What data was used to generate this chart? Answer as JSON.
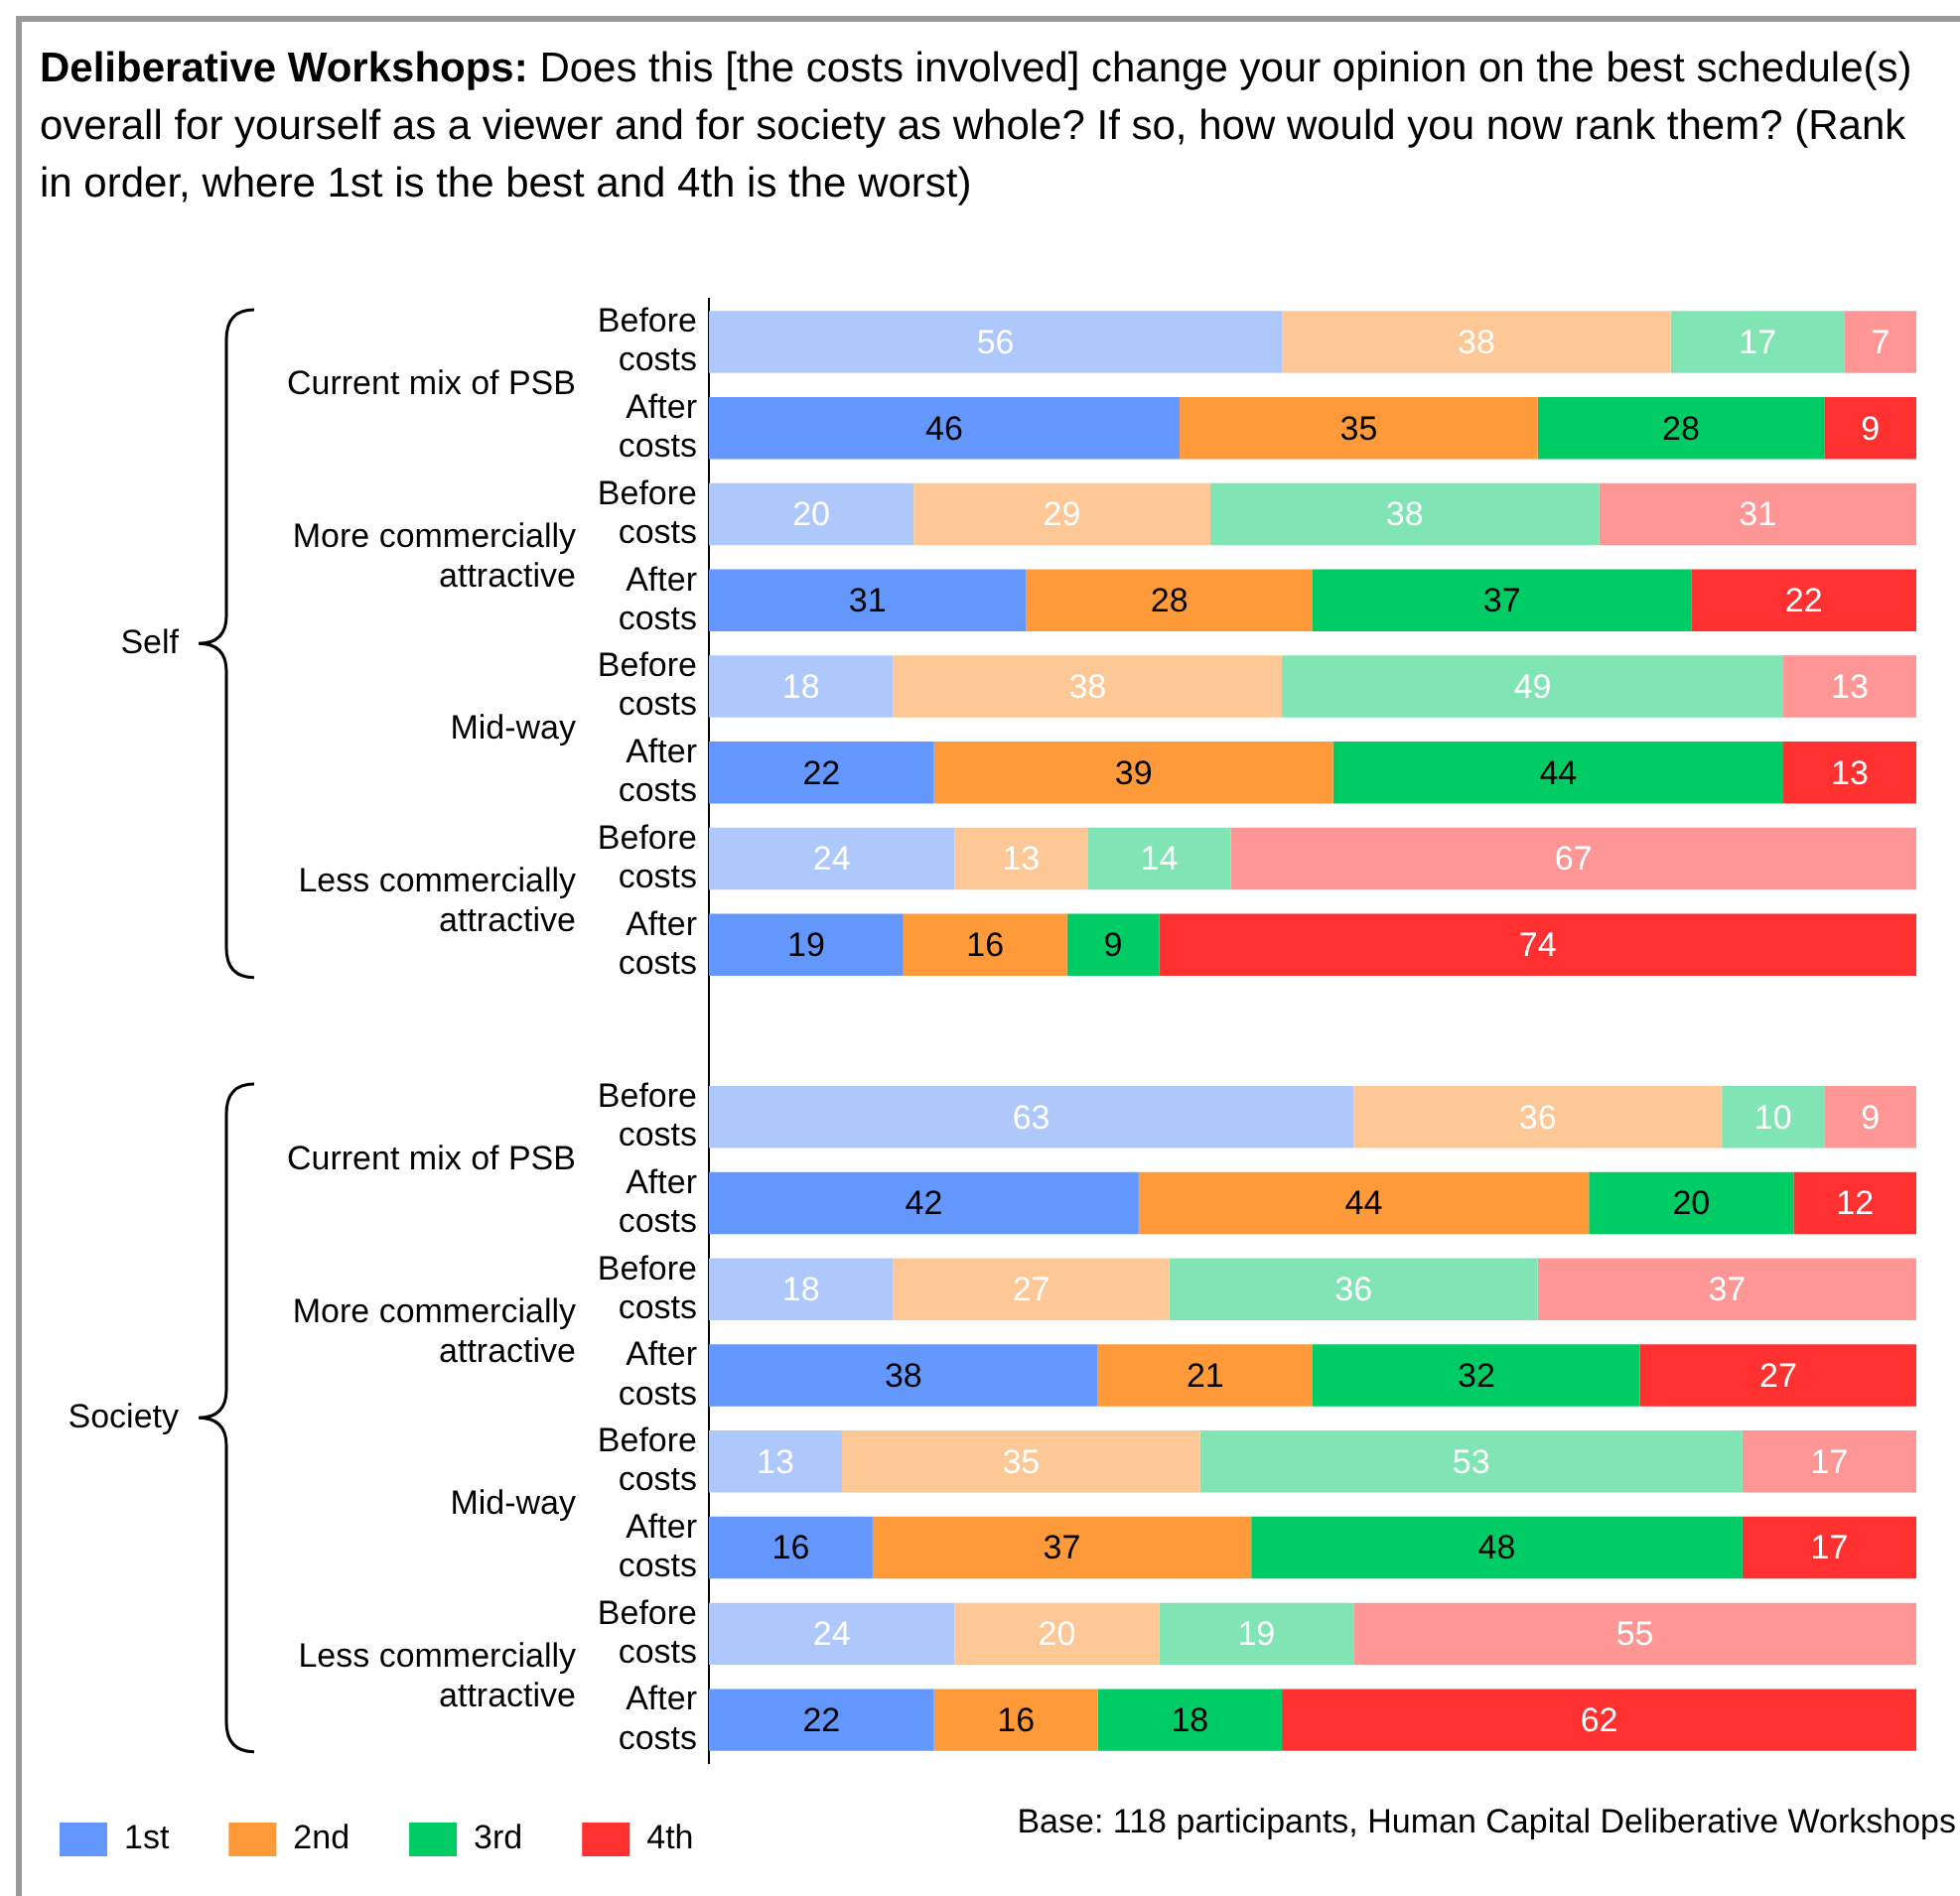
{
  "chart_data": {
    "type": "bar",
    "orientation": "horizontal",
    "stacked": true,
    "title": "Deliberative Workshops:",
    "subtitle": "Does this [the costs involved] change your opinion on the best schedule(s) overall for yourself as a viewer and for society as whole? If so, how would you now rank them? (Rank in order, where 1st is the best and 4th is the worst)",
    "categories": [
      "Before costs",
      "After costs",
      "Before costs",
      "After costs",
      "Before costs",
      "After costs",
      "Before costs",
      "After costs",
      null,
      "Before costs",
      "After costs",
      "Before costs",
      "After costs",
      "Before costs",
      "After costs",
      "Before costs",
      "After costs"
    ],
    "xlim": [
      0,
      118
    ],
    "tick_labels": "y",
    "grid": false,
    "legend": "bottom",
    "data_labels": true,
    "series": [
      {
        "name": "1st",
        "color": "#6497fc",
        "colors": [
          "#afc8fb",
          "#6497fc",
          "#afc8fb",
          "#6497fc",
          "#afc8fb",
          "#6497fc",
          "#afc8fb",
          "#6497fc",
          "#6497fc",
          "#afc8fb",
          "#6497fc",
          "#afc8fb",
          "#6497fc",
          "#afc8fb",
          "#6497fc",
          "#afc8fb",
          "#6497fc"
        ],
        "values": [
          56,
          46,
          20,
          31,
          18,
          22,
          24,
          19,
          null,
          63,
          42,
          18,
          38,
          13,
          16,
          24,
          22
        ]
      },
      {
        "name": "2nd",
        "color": "#fe9a3a",
        "colors": [
          "#fdc896",
          "#fe9a3a",
          "#fdc896",
          "#fe9a3a",
          "#fdc896",
          "#fe9a3a",
          "#fdc896",
          "#fe9a3a",
          "#fe9a3a",
          "#fdc896",
          "#fe9a3a",
          "#fdc896",
          "#fe9a3a",
          "#fdc896",
          "#fe9a3a",
          "#fdc896",
          "#fe9a3a"
        ],
        "values": [
          38,
          35,
          29,
          28,
          38,
          39,
          13,
          16,
          null,
          36,
          44,
          27,
          21,
          35,
          37,
          20,
          16
        ]
      },
      {
        "name": "3rd",
        "color": "#00cc66",
        "colors": [
          "#80e4b4",
          "#00cc66",
          "#80e4b4",
          "#00cc66",
          "#80e4b4",
          "#00cc66",
          "#80e4b4",
          "#00cc66",
          "#00cc66",
          "#80e4b4",
          "#00cc66",
          "#80e4b4",
          "#00cc66",
          "#80e4b4",
          "#00cc66",
          "#80e4b4",
          "#00cc66"
        ],
        "values": [
          17,
          28,
          38,
          37,
          49,
          44,
          14,
          9,
          null,
          10,
          20,
          36,
          32,
          53,
          48,
          19,
          18
        ]
      },
      {
        "name": "4th",
        "color": "#fe3030",
        "colors": [
          "#fe9696",
          "#fe3030",
          "#fe9696",
          "#fe3030",
          "#fe9696",
          "#fe3030",
          "#fe9696",
          "#fe3030",
          "#fe3030",
          "#fe9696",
          "#fe3030",
          "#fe9696",
          "#fe3030",
          "#fe9696",
          "#fe3030",
          "#fe9696",
          "#fe3030"
        ],
        "values": [
          7,
          9,
          31,
          22,
          13,
          13,
          67,
          74,
          null,
          9,
          12,
          37,
          27,
          17,
          17,
          55,
          62
        ]
      }
    ],
    "annotations": [
      "Self",
      "Society",
      "Current mix of PSB",
      "More commercially attractive",
      "Mid-way",
      "Less commercially attractive",
      "Current mix of PSB",
      "More commercially attractive",
      "Mid-way",
      "Less commercially attractive",
      "Base: 118 participants, Human Capital Deliberative Workshops"
    ]
  }
}
